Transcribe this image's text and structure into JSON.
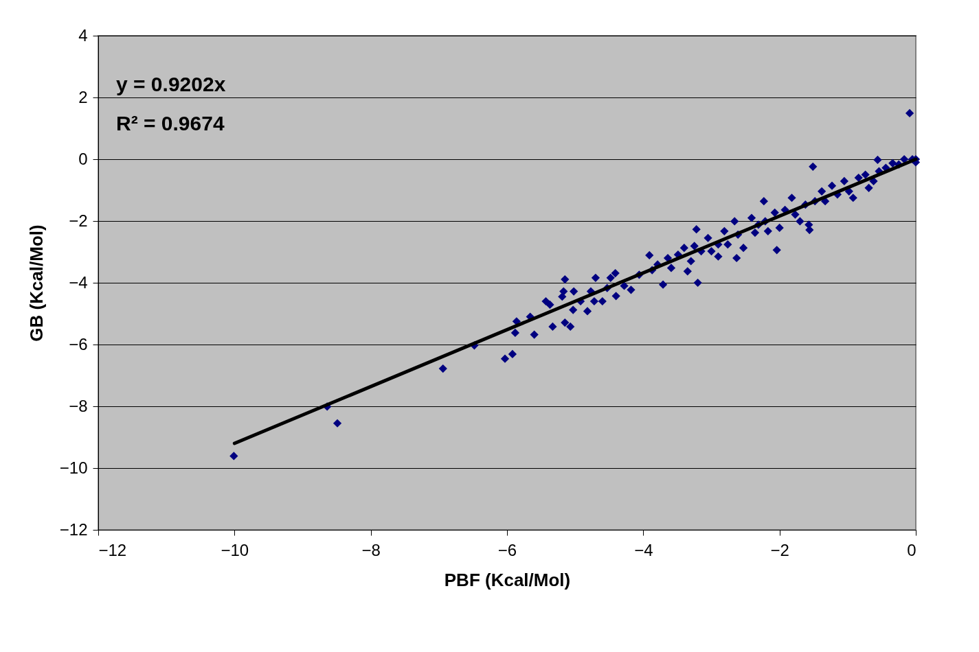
{
  "chart_data": {
    "type": "scatter",
    "xlabel": "PBF (Kcal/Mol)",
    "ylabel": "GB (Kcal/Mol)",
    "xlim": [
      -12,
      0
    ],
    "xticks": [
      -12,
      -10,
      -8,
      -6,
      -4,
      -2,
      0
    ],
    "ylim": [
      -12,
      4
    ],
    "yticks": [
      -12,
      -10,
      -8,
      -6,
      -4,
      -2,
      0,
      2,
      4
    ],
    "grid": "y",
    "marker": "diamond",
    "annotations": [
      "y = 0.9202x",
      "R² = 0.9674"
    ],
    "series": [
      {
        "color": "#000080",
        "x": [
          -10.01,
          -8.64,
          -8.49,
          -6.94,
          -6.48,
          -6.03,
          -5.92,
          -5.86,
          -5.88,
          -5.66,
          -5.6,
          -5.43,
          -5.37,
          -5.33,
          -5.15,
          -5.17,
          -5.19,
          -5.15,
          -5.07,
          -5.02,
          -5.03,
          -4.92,
          -4.82,
          -4.77,
          -4.7,
          -4.72,
          -4.6,
          -4.53,
          -4.48,
          -4.41,
          -4.4,
          -4.28,
          -4.18,
          -4.06,
          -3.91,
          -3.87,
          -3.71,
          -3.79,
          -3.64,
          -3.59,
          -3.49,
          -3.4,
          -3.35,
          -3.3,
          -3.25,
          -3.22,
          -3.2,
          -3.15,
          -3.05,
          -3.0,
          -2.9,
          -2.9,
          -2.81,
          -2.76,
          -2.66,
          -2.63,
          -2.61,
          -2.53,
          -2.41,
          -2.36,
          -2.31,
          -2.23,
          -2.21,
          -2.17,
          -2.07,
          -2.04,
          -2.0,
          -1.92,
          -1.82,
          -1.77,
          -1.7,
          -1.62,
          -1.57,
          -1.56,
          -1.51,
          -1.48,
          -1.38,
          -1.33,
          -1.23,
          -1.15,
          -1.05,
          -0.98,
          -0.92,
          -0.84,
          -0.74,
          -0.69,
          -0.62,
          -0.56,
          -0.54,
          -0.44,
          -0.34,
          -0.25,
          -0.17,
          -0.09,
          -0.05,
          0.0,
          0.0
        ],
        "values": [
          -9.61,
          -8.01,
          -8.55,
          -6.78,
          -6.03,
          -6.46,
          -6.31,
          -5.25,
          -5.62,
          -5.1,
          -5.68,
          -4.6,
          -4.71,
          -5.42,
          -3.89,
          -4.28,
          -4.45,
          -5.29,
          -5.42,
          -4.28,
          -4.88,
          -4.6,
          -4.92,
          -4.28,
          -3.84,
          -4.6,
          -4.6,
          -4.17,
          -3.84,
          -3.69,
          -4.43,
          -4.1,
          -4.23,
          -3.74,
          -3.11,
          -3.59,
          -4.06,
          -3.41,
          -3.2,
          -3.52,
          -3.09,
          -2.87,
          -3.63,
          -3.3,
          -2.81,
          -2.27,
          -4.0,
          -2.98,
          -2.55,
          -2.98,
          -2.76,
          -3.15,
          -2.33,
          -2.76,
          -2.01,
          -3.2,
          -2.44,
          -2.87,
          -1.9,
          -2.38,
          -2.12,
          -1.36,
          -2.01,
          -2.33,
          -1.73,
          -2.94,
          -2.22,
          -1.64,
          -1.25,
          -1.79,
          -2.01,
          -1.47,
          -2.12,
          -2.29,
          -0.24,
          -1.36,
          -1.04,
          -1.36,
          -0.86,
          -1.14,
          -0.71,
          -1.04,
          -1.25,
          -0.6,
          -0.5,
          -0.93,
          -0.71,
          -0.02,
          -0.39,
          -0.28,
          -0.13,
          -0.17,
          0.0,
          1.49,
          0.0,
          0.0,
          -0.1
        ]
      },
      {
        "type": "line",
        "marker": "none",
        "line_style": "solid",
        "color": "#000000",
        "x": [
          -10,
          0
        ],
        "values": [
          -9.2,
          0
        ]
      }
    ]
  }
}
